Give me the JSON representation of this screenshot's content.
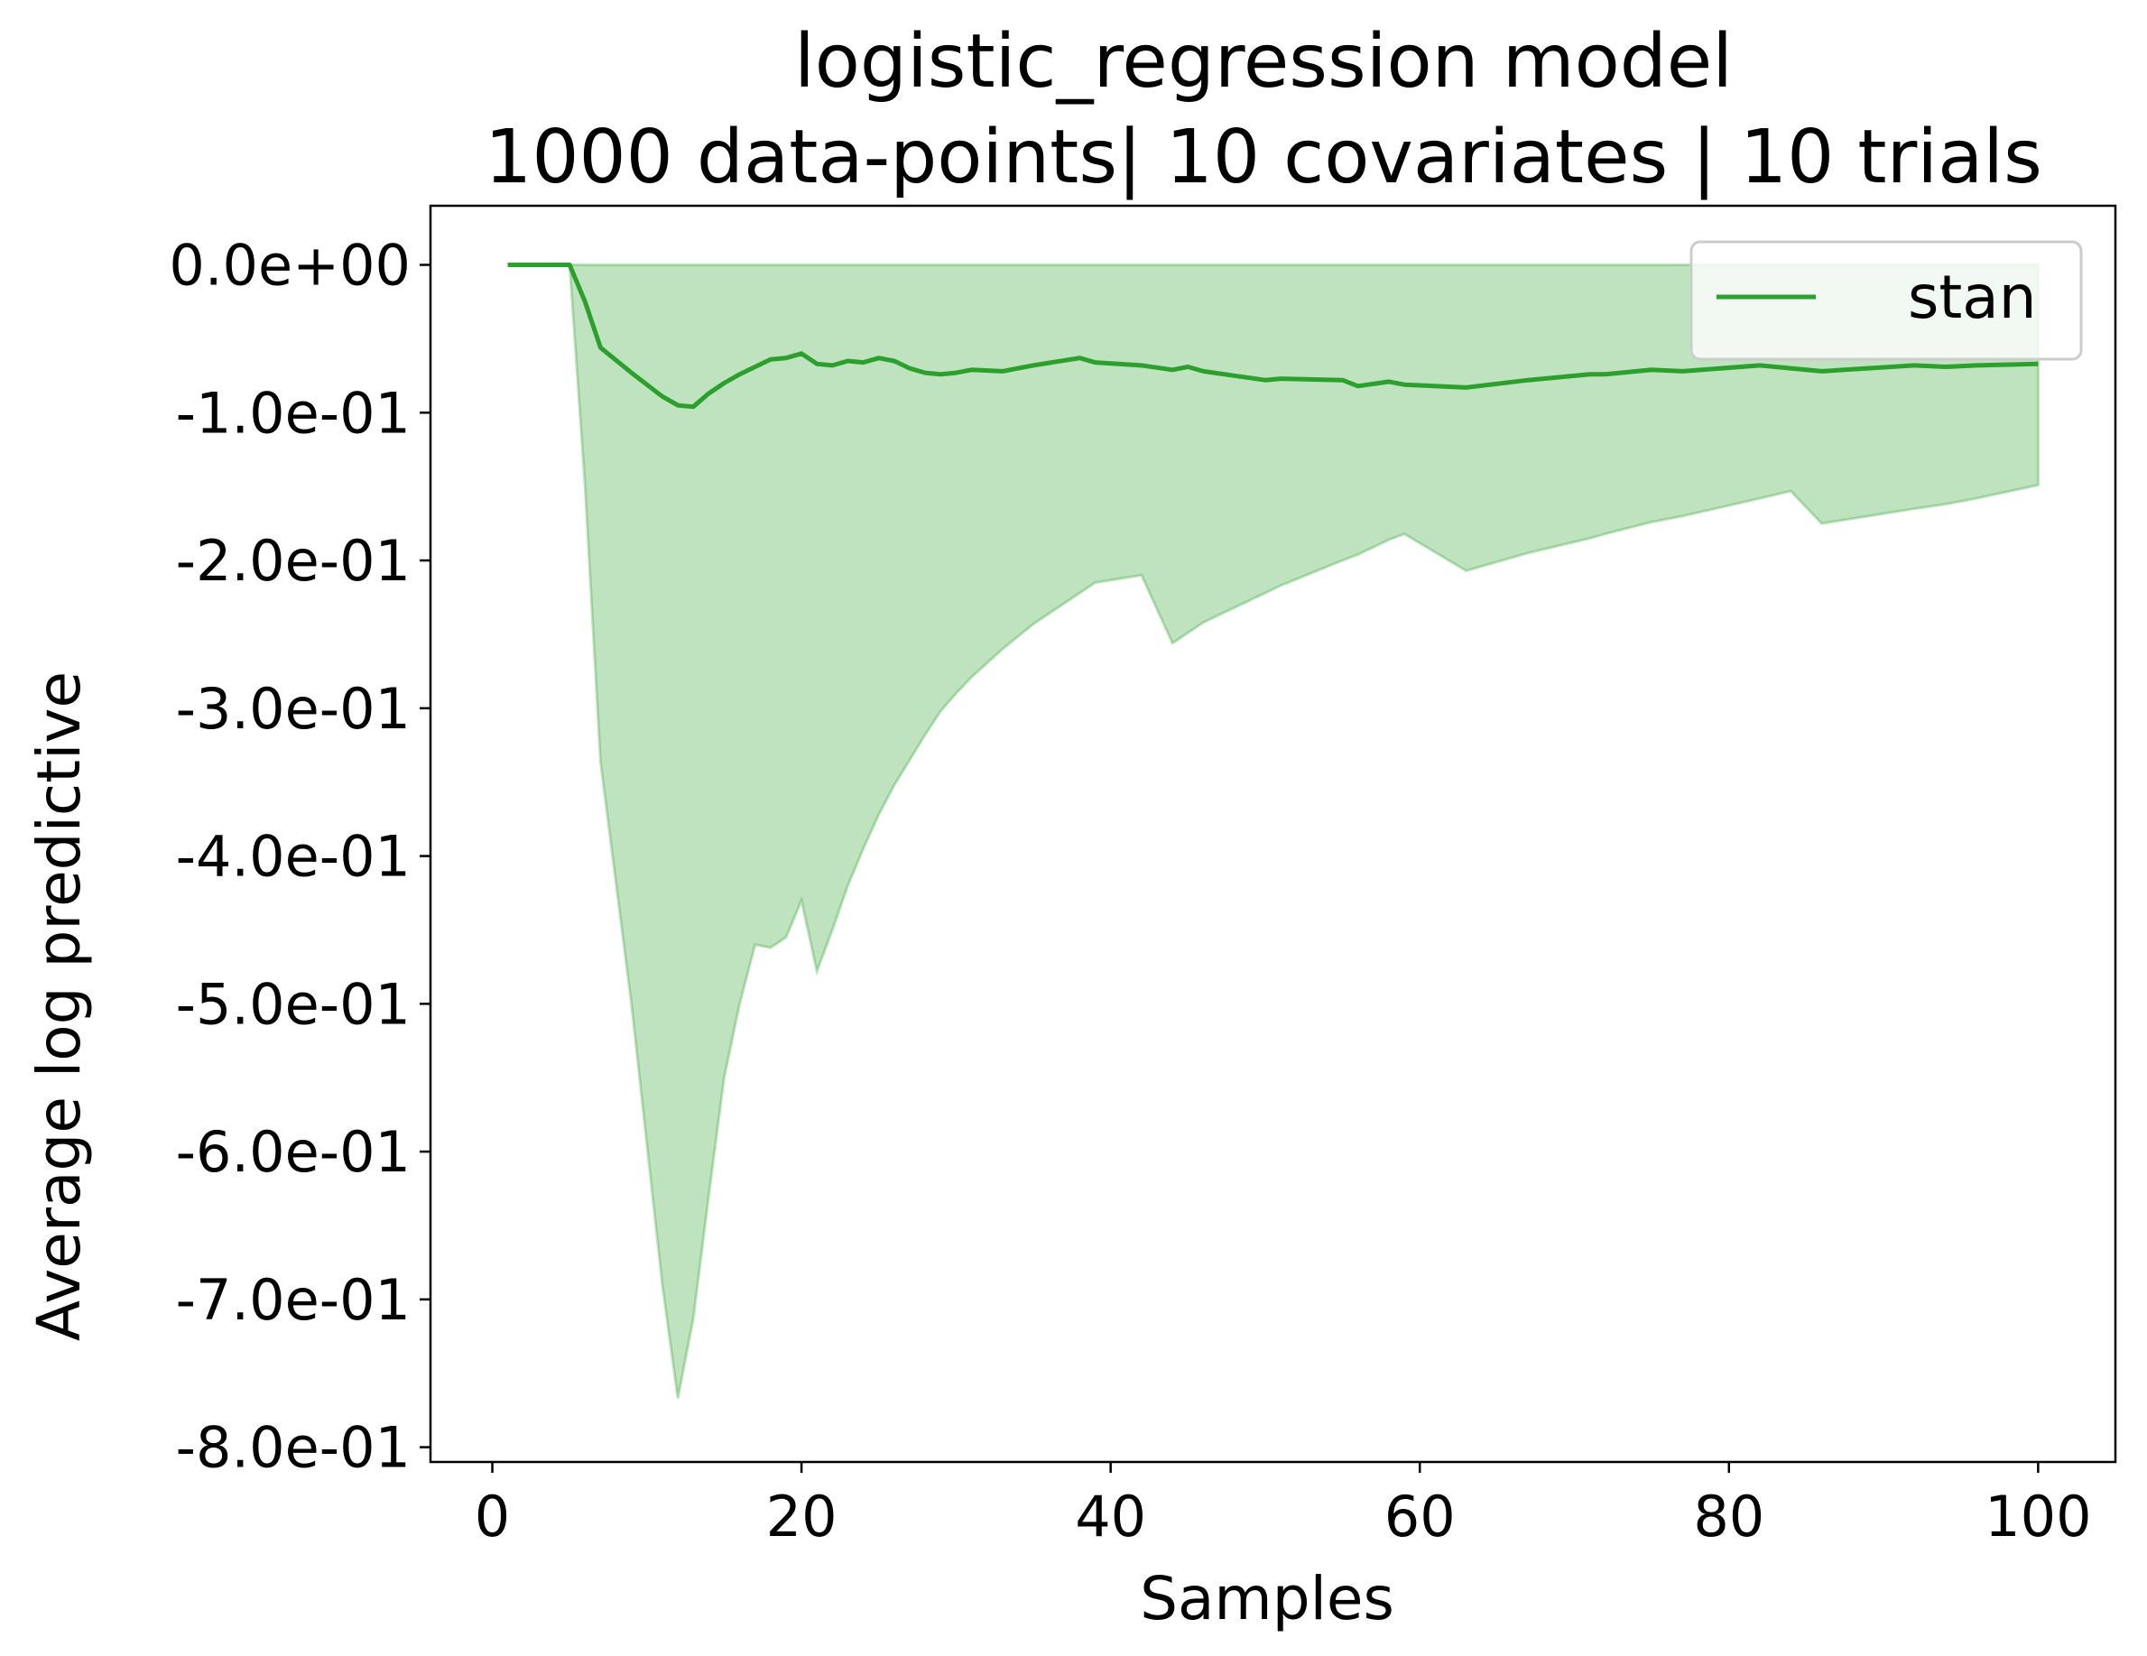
{
  "chart_data": {
    "type": "line",
    "title_line1": "logistic_regression model",
    "title_line2": "1000 data-points| 10 covariates | 10 trials",
    "xlabel": "Samples",
    "ylabel": "Average log predictive",
    "xlim": [
      -4,
      105
    ],
    "ylim": [
      -0.81,
      0.04
    ],
    "x_ticks": [
      0,
      20,
      40,
      60,
      80,
      100
    ],
    "x_tick_labels": [
      "0",
      "20",
      "40",
      "60",
      "80",
      "100"
    ],
    "y_ticks": [
      0,
      -0.1,
      -0.2,
      -0.3,
      -0.4,
      -0.5,
      -0.6,
      -0.7,
      -0.8
    ],
    "y_tick_labels": [
      "0.0e+00",
      "-1.0e-01",
      "-2.0e-01",
      "-3.0e-01",
      "-4.0e-01",
      "-5.0e-01",
      "-6.0e-01",
      "-7.0e-01",
      "-8.0e-01"
    ],
    "legend_placement": "top-right",
    "grid": false,
    "series": [
      {
        "name": "stan",
        "color": "#2ca02c",
        "band_color": "#2ca02c",
        "x": [
          1,
          5,
          6,
          7,
          9,
          11,
          12,
          13,
          14,
          15,
          16,
          17,
          18,
          19,
          20,
          21,
          22,
          23,
          24,
          25,
          26,
          27,
          28,
          29,
          30,
          31,
          33,
          35,
          38,
          39,
          42,
          44,
          45,
          46,
          48,
          50,
          51,
          55,
          56,
          58,
          59,
          63,
          67,
          71,
          72,
          75,
          77,
          82,
          84,
          85,
          86,
          92,
          94,
          96,
          100
        ],
        "mean": [
          0,
          0,
          -0.025,
          -0.056,
          -0.073,
          -0.089,
          -0.095,
          -0.096,
          -0.087,
          -0.08,
          -0.074,
          -0.069,
          -0.064,
          -0.063,
          -0.06,
          -0.067,
          -0.068,
          -0.065,
          -0.066,
          -0.063,
          -0.065,
          -0.07,
          -0.073,
          -0.074,
          -0.073,
          -0.071,
          -0.072,
          -0.068,
          -0.063,
          -0.066,
          -0.068,
          -0.071,
          -0.069,
          -0.072,
          -0.075,
          -0.078,
          -0.077,
          -0.078,
          -0.082,
          -0.079,
          -0.081,
          -0.083,
          -0.078,
          -0.074,
          -0.074,
          -0.071,
          -0.072,
          -0.068,
          -0.07,
          -0.071,
          -0.072,
          -0.068,
          -0.069,
          -0.068,
          -0.067
        ],
        "band_upper": [
          0,
          0,
          0,
          0,
          0,
          0,
          0,
          0,
          0,
          0,
          0,
          0,
          0,
          0,
          0,
          0,
          0,
          0,
          0,
          0,
          0,
          0,
          0,
          0,
          0,
          0,
          0,
          0,
          0,
          0,
          0,
          0,
          0,
          0,
          0,
          0,
          0,
          0,
          0,
          0,
          0,
          0,
          0,
          0,
          0,
          0,
          0,
          0,
          0,
          0,
          0,
          0,
          0,
          0,
          0
        ],
        "band_lower": [
          0,
          0,
          -0.15,
          -0.336,
          -0.5,
          -0.69,
          -0.767,
          -0.713,
          -0.63,
          -0.55,
          -0.5,
          -0.46,
          -0.462,
          -0.455,
          -0.43,
          -0.478,
          -0.45,
          -0.42,
          -0.395,
          -0.372,
          -0.352,
          -0.335,
          -0.318,
          -0.302,
          -0.29,
          -0.279,
          -0.26,
          -0.243,
          -0.222,
          -0.215,
          -0.21,
          -0.256,
          -0.249,
          -0.242,
          -0.232,
          -0.222,
          -0.217,
          -0.2,
          -0.196,
          -0.186,
          -0.182,
          -0.207,
          -0.195,
          -0.185,
          -0.182,
          -0.174,
          -0.17,
          -0.158,
          -0.153,
          -0.164,
          -0.175,
          -0.165,
          -0.162,
          -0.158,
          -0.149
        ]
      }
    ]
  }
}
